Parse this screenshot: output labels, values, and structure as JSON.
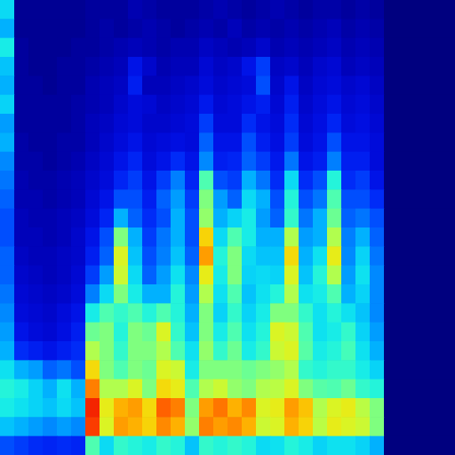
{
  "chart_data": {
    "type": "heatmap",
    "tick_labels": false,
    "zlim": [
      0,
      1
    ],
    "cells": [
      [
        0.35,
        0.02,
        0.02,
        0.02,
        0.02,
        0.02,
        0.03,
        0.03,
        0.03,
        0.05,
        0.04,
        0.03,
        0.03,
        0.03,
        0.04,
        0.05,
        0.04,
        0.03,
        0.04,
        0.05,
        0.04,
        0.03,
        0.04,
        0.04,
        0.03,
        0.04,
        0.03,
        0,
        0,
        0,
        0,
        0
      ],
      [
        0.3,
        0.02,
        0.02,
        0.02,
        0.02,
        0.02,
        0.03,
        0.04,
        0.03,
        0.04,
        0.05,
        0.04,
        0.03,
        0.04,
        0.05,
        0.04,
        0.06,
        0.04,
        0.05,
        0.04,
        0.05,
        0.04,
        0.05,
        0.06,
        0.04,
        0.05,
        0.04,
        0,
        0,
        0,
        0,
        0
      ],
      [
        0.38,
        0.03,
        0.02,
        0.02,
        0.02,
        0.03,
        0.03,
        0.04,
        0.05,
        0.06,
        0.05,
        0.04,
        0.05,
        0.05,
        0.07,
        0.06,
        0.05,
        0.06,
        0.08,
        0.05,
        0.06,
        0.05,
        0.06,
        0.07,
        0.05,
        0.06,
        0.05,
        0,
        0,
        0,
        0,
        0
      ],
      [
        0.32,
        0.03,
        0.02,
        0.02,
        0.03,
        0.03,
        0.04,
        0.05,
        0.06,
        0.12,
        0.08,
        0.05,
        0.06,
        0.06,
        0.09,
        0.07,
        0.08,
        0.12,
        0.18,
        0.07,
        0.08,
        0.06,
        0.08,
        0.09,
        0.06,
        0.07,
        0.06,
        0,
        0,
        0,
        0,
        0
      ],
      [
        0.3,
        0.03,
        0.03,
        0.02,
        0.03,
        0.03,
        0.05,
        0.06,
        0.07,
        0.14,
        0.06,
        0.06,
        0.07,
        0.08,
        0.1,
        0.08,
        0.09,
        0.1,
        0.2,
        0.08,
        0.12,
        0.07,
        0.09,
        0.1,
        0.08,
        0.09,
        0.07,
        0,
        0,
        0,
        0,
        0
      ],
      [
        0.34,
        0.03,
        0.03,
        0.03,
        0.03,
        0.04,
        0.05,
        0.06,
        0.08,
        0.1,
        0.09,
        0.07,
        0.08,
        0.09,
        0.13,
        0.09,
        0.1,
        0.12,
        0.14,
        0.09,
        0.14,
        0.08,
        0.1,
        0.12,
        0.09,
        0.1,
        0.08,
        0,
        0,
        0,
        0,
        0
      ],
      [
        0.28,
        0.03,
        0.03,
        0.03,
        0.03,
        0.04,
        0.06,
        0.07,
        0.09,
        0.1,
        0.08,
        0.08,
        0.09,
        0.1,
        0.18,
        0.1,
        0.1,
        0.16,
        0.12,
        0.1,
        0.16,
        0.09,
        0.11,
        0.15,
        0.1,
        0.11,
        0.09,
        0,
        0,
        0,
        0,
        0
      ],
      [
        0.3,
        0.04,
        0.03,
        0.03,
        0.04,
        0.04,
        0.06,
        0.08,
        0.1,
        0.12,
        0.09,
        0.1,
        0.11,
        0.1,
        0.22,
        0.12,
        0.12,
        0.2,
        0.14,
        0.11,
        0.18,
        0.1,
        0.12,
        0.2,
        0.12,
        0.12,
        0.1,
        0,
        0,
        0,
        0,
        0
      ],
      [
        0.26,
        0.04,
        0.04,
        0.03,
        0.04,
        0.05,
        0.07,
        0.09,
        0.12,
        0.15,
        0.1,
        0.12,
        0.16,
        0.12,
        0.26,
        0.14,
        0.15,
        0.22,
        0.18,
        0.13,
        0.24,
        0.12,
        0.14,
        0.25,
        0.14,
        0.14,
        0.1,
        0,
        0,
        0,
        0,
        0
      ],
      [
        0.24,
        0.05,
        0.04,
        0.04,
        0.05,
        0.06,
        0.08,
        0.1,
        0.15,
        0.18,
        0.12,
        0.18,
        0.25,
        0.15,
        0.45,
        0.2,
        0.18,
        0.3,
        0.24,
        0.16,
        0.35,
        0.16,
        0.2,
        0.4,
        0.16,
        0.18,
        0.12,
        0,
        0,
        0,
        0,
        0
      ],
      [
        0.22,
        0.05,
        0.05,
        0.04,
        0.05,
        0.06,
        0.09,
        0.12,
        0.2,
        0.2,
        0.14,
        0.22,
        0.28,
        0.18,
        0.5,
        0.28,
        0.22,
        0.35,
        0.3,
        0.2,
        0.4,
        0.2,
        0.24,
        0.45,
        0.2,
        0.2,
        0.16,
        0,
        0,
        0,
        0,
        0
      ],
      [
        0.2,
        0.06,
        0.05,
        0.05,
        0.06,
        0.07,
        0.1,
        0.15,
        0.3,
        0.22,
        0.16,
        0.2,
        0.3,
        0.2,
        0.52,
        0.3,
        0.34,
        0.38,
        0.28,
        0.22,
        0.42,
        0.24,
        0.3,
        0.48,
        0.22,
        0.24,
        0.2,
        0,
        0,
        0,
        0,
        0
      ],
      [
        0.2,
        0.06,
        0.06,
        0.05,
        0.06,
        0.08,
        0.12,
        0.2,
        0.5,
        0.3,
        0.18,
        0.24,
        0.3,
        0.2,
        0.66,
        0.35,
        0.45,
        0.38,
        0.3,
        0.3,
        0.55,
        0.28,
        0.3,
        0.55,
        0.25,
        0.3,
        0.22,
        0,
        0,
        0,
        0,
        0
      ],
      [
        0.22,
        0.07,
        0.06,
        0.06,
        0.07,
        0.08,
        0.14,
        0.22,
        0.6,
        0.32,
        0.2,
        0.25,
        0.32,
        0.22,
        0.72,
        0.4,
        0.5,
        0.35,
        0.32,
        0.32,
        0.65,
        0.3,
        0.36,
        0.62,
        0.26,
        0.34,
        0.24,
        0,
        0,
        0,
        0,
        0
      ],
      [
        0.22,
        0.08,
        0.07,
        0.06,
        0.07,
        0.09,
        0.18,
        0.28,
        0.58,
        0.35,
        0.22,
        0.28,
        0.36,
        0.26,
        0.62,
        0.38,
        0.5,
        0.34,
        0.35,
        0.34,
        0.6,
        0.32,
        0.4,
        0.55,
        0.28,
        0.36,
        0.26,
        0,
        0,
        0,
        0,
        0
      ],
      [
        0.24,
        0.09,
        0.08,
        0.07,
        0.08,
        0.1,
        0.25,
        0.35,
        0.5,
        0.38,
        0.3,
        0.3,
        0.4,
        0.28,
        0.55,
        0.36,
        0.45,
        0.32,
        0.36,
        0.4,
        0.55,
        0.36,
        0.38,
        0.45,
        0.3,
        0.34,
        0.26,
        0,
        0,
        0,
        0,
        0
      ],
      [
        0.26,
        0.1,
        0.09,
        0.08,
        0.1,
        0.12,
        0.38,
        0.45,
        0.42,
        0.45,
        0.4,
        0.45,
        0.4,
        0.3,
        0.5,
        0.34,
        0.42,
        0.34,
        0.38,
        0.5,
        0.5,
        0.42,
        0.36,
        0.4,
        0.36,
        0.32,
        0.26,
        0,
        0,
        0,
        0,
        0
      ],
      [
        0.28,
        0.12,
        0.1,
        0.09,
        0.11,
        0.14,
        0.48,
        0.5,
        0.4,
        0.5,
        0.48,
        0.6,
        0.42,
        0.32,
        0.5,
        0.38,
        0.45,
        0.36,
        0.4,
        0.6,
        0.58,
        0.45,
        0.36,
        0.38,
        0.42,
        0.34,
        0.28,
        0,
        0,
        0,
        0,
        0
      ],
      [
        0.3,
        0.16,
        0.14,
        0.12,
        0.14,
        0.16,
        0.55,
        0.5,
        0.42,
        0.5,
        0.5,
        0.55,
        0.45,
        0.36,
        0.52,
        0.42,
        0.48,
        0.38,
        0.42,
        0.58,
        0.6,
        0.46,
        0.38,
        0.4,
        0.44,
        0.36,
        0.3,
        0,
        0,
        0,
        0,
        0
      ],
      [
        0.36,
        0.3,
        0.28,
        0.22,
        0.24,
        0.2,
        0.65,
        0.5,
        0.45,
        0.5,
        0.48,
        0.6,
        0.58,
        0.38,
        0.5,
        0.5,
        0.5,
        0.48,
        0.5,
        0.52,
        0.55,
        0.42,
        0.4,
        0.42,
        0.42,
        0.38,
        0.34,
        0,
        0,
        0,
        0,
        0
      ],
      [
        0.4,
        0.38,
        0.34,
        0.3,
        0.36,
        0.3,
        0.75,
        0.55,
        0.55,
        0.6,
        0.5,
        0.65,
        0.62,
        0.45,
        0.55,
        0.58,
        0.52,
        0.5,
        0.55,
        0.56,
        0.6,
        0.5,
        0.46,
        0.45,
        0.48,
        0.42,
        0.4,
        0,
        0,
        0,
        0,
        0
      ],
      [
        0.38,
        0.36,
        0.34,
        0.32,
        0.35,
        0.32,
        0.85,
        0.62,
        0.7,
        0.72,
        0.65,
        0.78,
        0.75,
        0.5,
        0.72,
        0.76,
        0.7,
        0.74,
        0.6,
        0.62,
        0.72,
        0.68,
        0.55,
        0.6,
        0.62,
        0.56,
        0.5,
        0,
        0,
        0,
        0,
        0
      ],
      [
        0.32,
        0.3,
        0.28,
        0.26,
        0.28,
        0.26,
        0.82,
        0.6,
        0.72,
        0.7,
        0.66,
        0.74,
        0.7,
        0.52,
        0.75,
        0.72,
        0.74,
        0.7,
        0.58,
        0.6,
        0.7,
        0.66,
        0.56,
        0.62,
        0.6,
        0.58,
        0.5,
        0,
        0,
        0,
        0,
        0
      ],
      [
        0.2,
        0.18,
        0.16,
        0.15,
        0.16,
        0.15,
        0.45,
        0.35,
        0.42,
        0.4,
        0.38,
        0.42,
        0.4,
        0.32,
        0.42,
        0.4,
        0.42,
        0.4,
        0.35,
        0.36,
        0.4,
        0.38,
        0.34,
        0.36,
        0.36,
        0.34,
        0.3,
        0,
        0,
        0,
        0,
        0
      ]
    ]
  }
}
